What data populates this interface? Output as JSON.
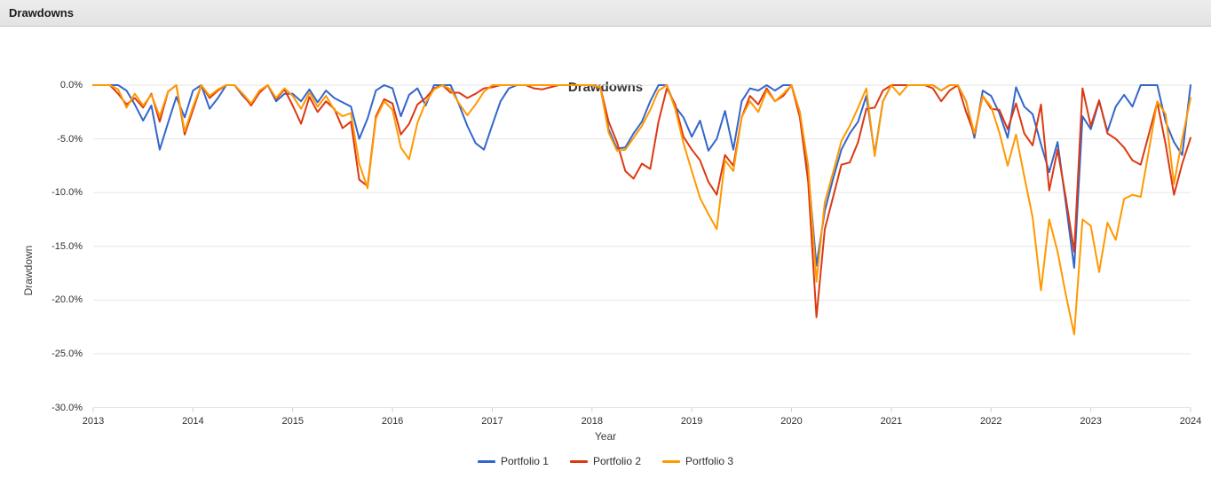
{
  "header": {
    "title": "Drawdowns"
  },
  "chart": {
    "title": "Drawdowns",
    "x_axis_label": "Year",
    "y_axis_label": "Drawdown"
  },
  "chart_data": {
    "type": "line",
    "title": "Drawdowns",
    "xlabel": "Year",
    "ylabel": "Drawdown",
    "x_unit": "month",
    "x_range": [
      "Jan 2013",
      "Jan 2024"
    ],
    "ylim": [
      -30,
      0
    ],
    "grid": true,
    "legend_position": "bottom",
    "y_ticks": [
      {
        "label": "0.0%",
        "value": 0
      },
      {
        "label": "-5.0%",
        "value": -5
      },
      {
        "label": "-10.0%",
        "value": -10
      },
      {
        "label": "-15.0%",
        "value": -15
      },
      {
        "label": "-20.0%",
        "value": -20
      },
      {
        "label": "-25.0%",
        "value": -25
      },
      {
        "label": "-30.0%",
        "value": -30
      }
    ],
    "x_ticks": [
      {
        "label": "2013",
        "month_index": 0
      },
      {
        "label": "2014",
        "month_index": 12
      },
      {
        "label": "2015",
        "month_index": 24
      },
      {
        "label": "2016",
        "month_index": 36
      },
      {
        "label": "2017",
        "month_index": 48
      },
      {
        "label": "2018",
        "month_index": 60
      },
      {
        "label": "2019",
        "month_index": 72
      },
      {
        "label": "2020",
        "month_index": 84
      },
      {
        "label": "2021",
        "month_index": 96
      },
      {
        "label": "2022",
        "month_index": 108
      },
      {
        "label": "2023",
        "month_index": 120
      },
      {
        "label": "2024",
        "month_index": 132
      }
    ],
    "series": [
      {
        "name": "Portfolio 1",
        "color": "#3366CC",
        "values": [
          0,
          0,
          0,
          0,
          -0.5,
          -1.8,
          -3.3,
          -1.9,
          -6.0,
          -3.5,
          -1.1,
          -3.0,
          -0.5,
          0,
          -2.2,
          -1.2,
          0,
          0,
          -1.0,
          -1.8,
          -0.6,
          0,
          -1.5,
          -0.8,
          -0.8,
          -1.5,
          -0.4,
          -1.6,
          -0.5,
          -1.2,
          -1.6,
          -2.0,
          -5.0,
          -3.1,
          -0.5,
          0,
          -0.3,
          -2.9,
          -0.9,
          -0.3,
          -1.9,
          0,
          0,
          0,
          -1.8,
          -3.8,
          -5.4,
          -6.0,
          -3.7,
          -1.5,
          -0.3,
          0,
          0,
          0,
          0,
          0,
          0,
          0,
          0,
          0,
          0,
          -0.2,
          -4.1,
          -5.9,
          -5.8,
          -4.5,
          -3.4,
          -1.5,
          0,
          0,
          -2.0,
          -3.0,
          -4.8,
          -3.3,
          -6.1,
          -5.0,
          -2.4,
          -6.0,
          -1.5,
          -0.3,
          -0.5,
          0,
          -0.5,
          0,
          0,
          -2.5,
          -8.0,
          -16.8,
          -11.7,
          -8.7,
          -6.0,
          -4.5,
          -3.4,
          -1.0,
          -6.4,
          -1.5,
          0,
          0,
          0,
          0,
          0,
          0,
          -0.5,
          0,
          0,
          -1.5,
          -4.9,
          -0.5,
          -1.0,
          -2.6,
          -4.9,
          -0.2,
          -2.0,
          -2.7,
          -5.5,
          -8.1,
          -5.3,
          -11.0,
          -17.0,
          -2.9,
          -4.1,
          -1.5,
          -4.3,
          -2.0,
          -0.9,
          -2.0,
          0,
          0,
          0,
          -3.4,
          -5.3,
          -6.5,
          0
        ]
      },
      {
        "name": "Portfolio 2",
        "color": "#DC3912",
        "values": [
          0,
          0,
          0,
          -0.8,
          -1.8,
          -1.2,
          -2.1,
          -0.8,
          -3.4,
          -0.6,
          0,
          -4.6,
          -2.3,
          0,
          -1.2,
          -0.5,
          0,
          0,
          -0.9,
          -1.9,
          -0.7,
          0,
          -1.3,
          -0.4,
          -1.9,
          -3.6,
          -1.1,
          -2.5,
          -1.5,
          -2.2,
          -4.0,
          -3.4,
          -8.8,
          -9.4,
          -2.9,
          -1.3,
          -1.7,
          -4.6,
          -3.6,
          -1.8,
          -1.2,
          -0.3,
          0,
          -0.7,
          -0.7,
          -1.2,
          -0.8,
          -0.3,
          -0.2,
          0,
          0,
          0,
          0,
          -0.3,
          -0.4,
          -0.2,
          0,
          0,
          0,
          0,
          0,
          -0.2,
          -3.4,
          -5.3,
          -8.0,
          -8.7,
          -7.3,
          -7.8,
          -3.4,
          -0.3,
          -1.8,
          -4.8,
          -6.0,
          -7.0,
          -9.0,
          -10.2,
          -6.5,
          -7.5,
          -3.0,
          -1.0,
          -1.8,
          -0.3,
          -1.5,
          -1.0,
          0,
          -3.0,
          -9.0,
          -21.6,
          -13.4,
          -10.4,
          -7.4,
          -7.2,
          -5.3,
          -2.2,
          -2.1,
          -0.5,
          0,
          0,
          0,
          0,
          0,
          -0.3,
          -1.5,
          -0.5,
          0,
          -2.5,
          -4.6,
          -1.0,
          -2.2,
          -2.3,
          -4.1,
          -1.7,
          -4.5,
          -5.6,
          -1.8,
          -9.8,
          -6.0,
          -10.5,
          -15.5,
          -0.3,
          -3.8,
          -1.4,
          -4.5,
          -5.0,
          -5.8,
          -7.0,
          -7.4,
          -4.5,
          -1.6,
          -5.5,
          -10.2,
          -7.3,
          -4.9
        ]
      },
      {
        "name": "Portfolio 3",
        "color": "#FF9900",
        "values": [
          0,
          0,
          0,
          -0.4,
          -2.1,
          -0.8,
          -1.9,
          -0.9,
          -2.9,
          -0.6,
          0,
          -4.3,
          -2.0,
          0,
          -1.0,
          -0.4,
          0,
          0,
          -0.8,
          -1.7,
          -0.5,
          0,
          -1.2,
          -0.3,
          -1.0,
          -2.2,
          -0.7,
          -2.0,
          -1.0,
          -2.3,
          -2.9,
          -2.6,
          -7.3,
          -9.6,
          -3.1,
          -1.5,
          -2.3,
          -5.8,
          -6.9,
          -3.5,
          -1.6,
          -0.4,
          0,
          -0.4,
          -1.7,
          -2.8,
          -1.8,
          -0.6,
          0,
          0,
          0,
          0,
          0,
          0,
          0,
          0,
          0,
          0,
          0,
          0,
          0,
          -0.2,
          -4.4,
          -6.1,
          -6.0,
          -4.9,
          -3.8,
          -2.3,
          -0.5,
          0,
          -2.2,
          -5.4,
          -8.0,
          -10.5,
          -12.0,
          -13.4,
          -7.0,
          -8.0,
          -3.0,
          -1.5,
          -2.5,
          -0.5,
          -1.5,
          -0.8,
          0,
          -2.5,
          -7.5,
          -18.3,
          -10.9,
          -8.1,
          -5.2,
          -3.8,
          -2.1,
          -0.3,
          -6.6,
          -1.5,
          0,
          -0.9,
          0,
          0,
          0,
          0,
          -0.5,
          0,
          0,
          -1.5,
          -4.5,
          -1.0,
          -2.0,
          -4.4,
          -7.5,
          -4.6,
          -8.5,
          -12.3,
          -19.1,
          -12.5,
          -15.5,
          -19.5,
          -23.2,
          -12.5,
          -13.1,
          -17.4,
          -12.8,
          -14.4,
          -10.6,
          -10.2,
          -10.4,
          -6.0,
          -1.5,
          -2.7,
          -9.2,
          -5.0,
          -1.2
        ]
      }
    ]
  }
}
